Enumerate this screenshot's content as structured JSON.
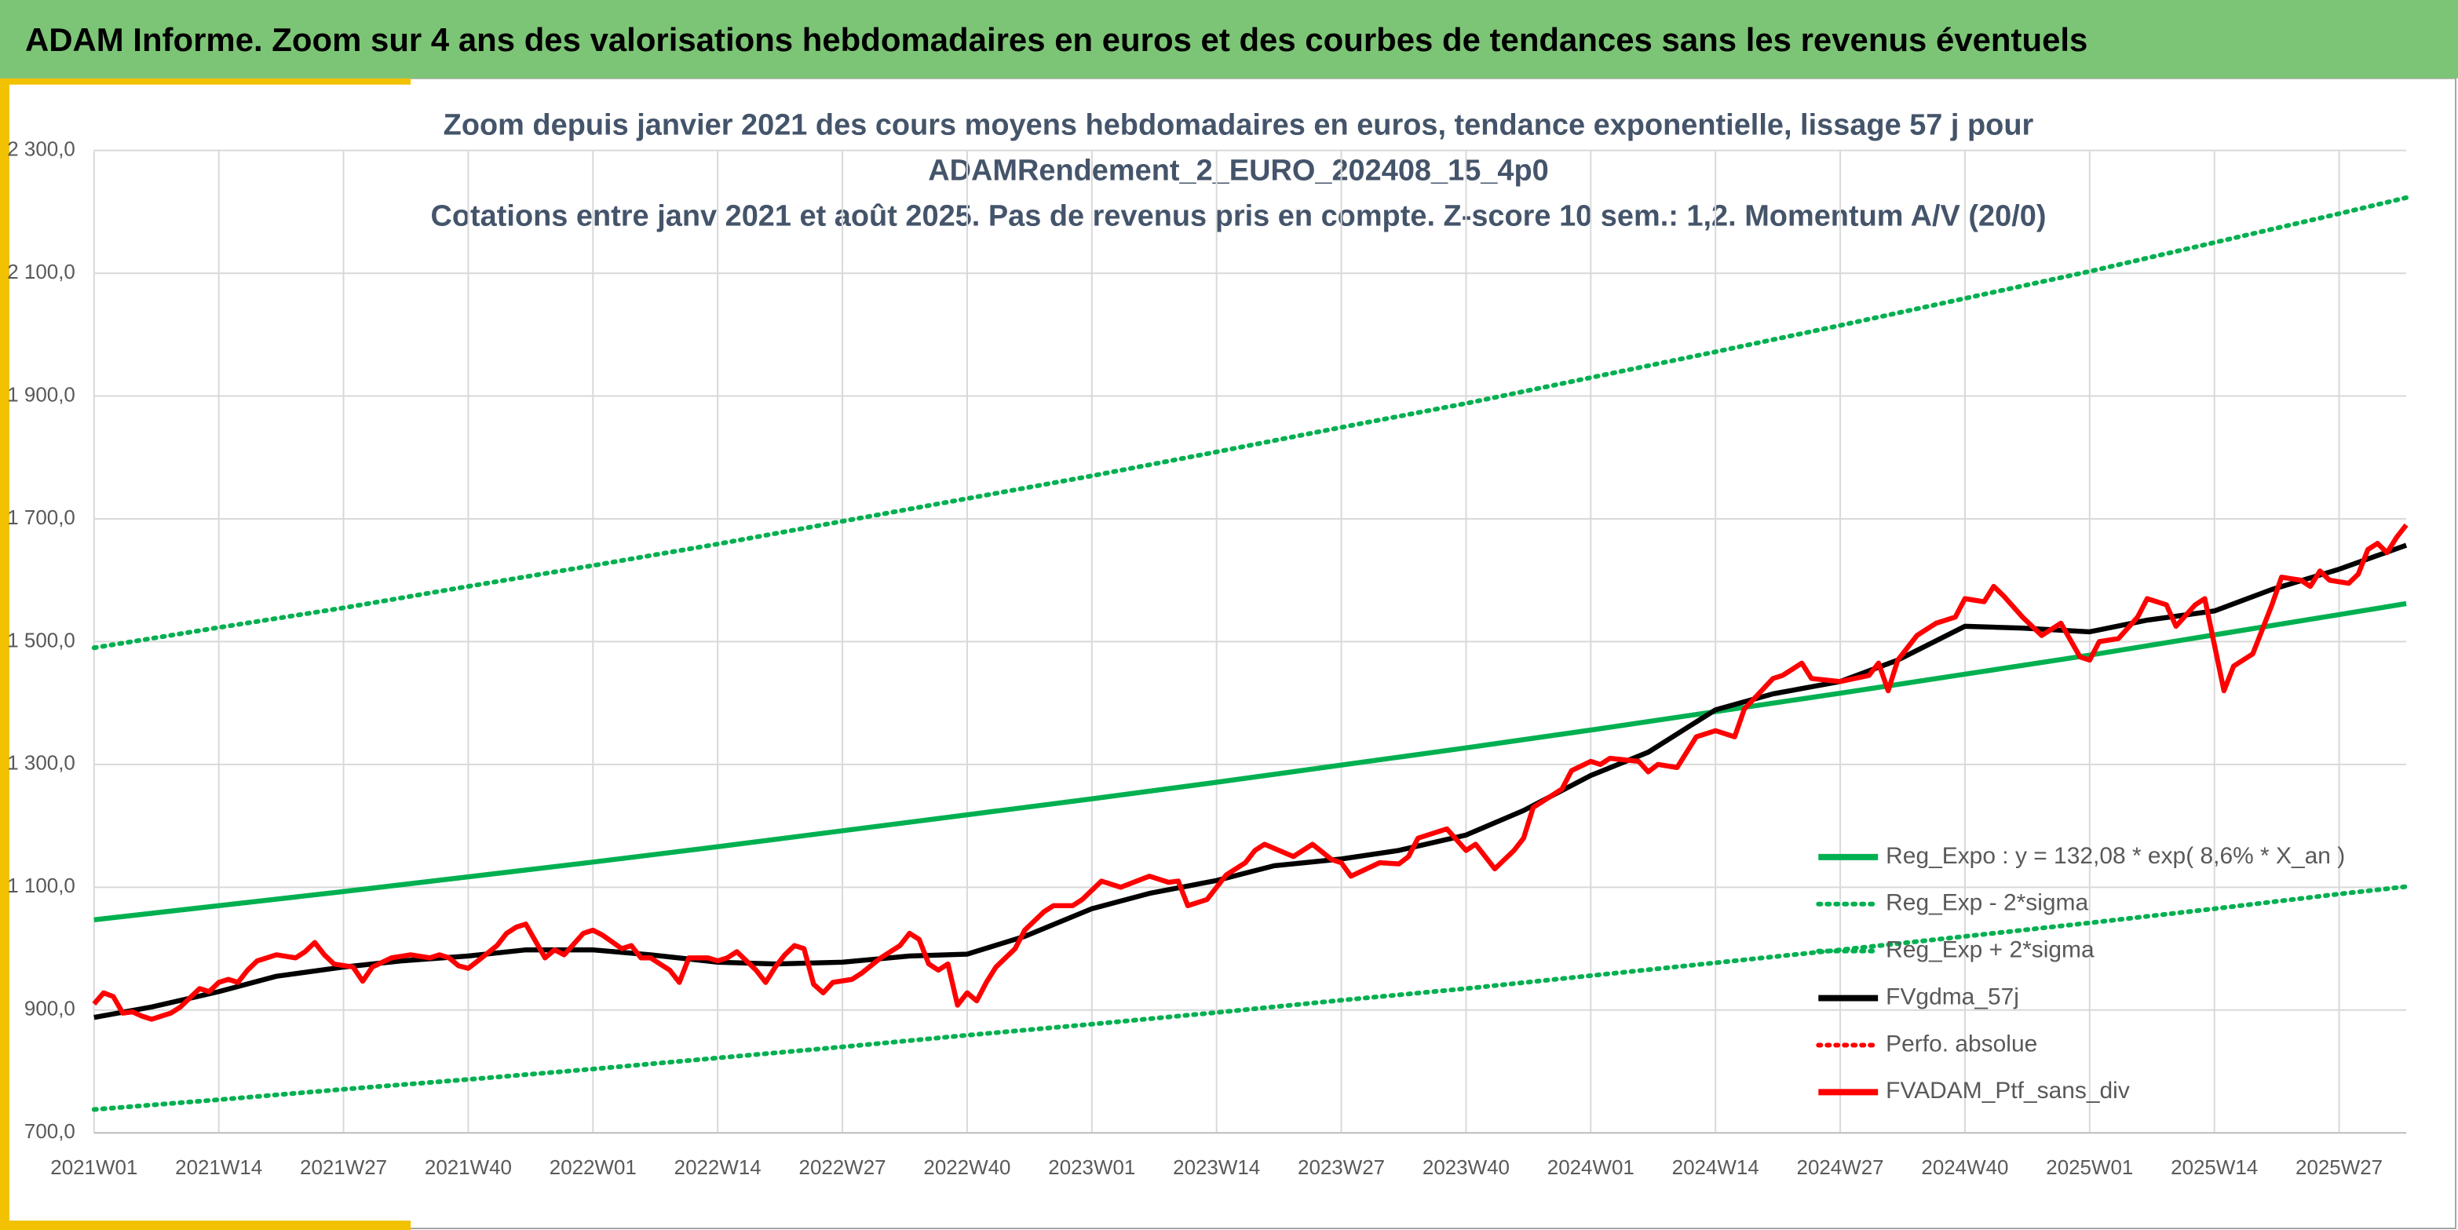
{
  "banner": {
    "title": "ADAM Informe. Zoom sur 4 ans des valorisations hebdomadaires en euros et des courbes de tendances sans les revenus éventuels"
  },
  "chart_data": {
    "type": "line",
    "title": [
      "Zoom depuis janvier 2021 des cours moyens hebdomadaires en euros, tendance exponentielle, lissage 57 j pour",
      "ADAMRendement_2_EURO_202408_15_4p0",
      "Cotations entre janv 2021 et août 2025. Pas de revenus pris en compte. Z-score 10 sem.: 1,2. Momentum A/V (20/0)"
    ],
    "xlim": [
      0,
      241
    ],
    "xticks": [
      {
        "value": 0,
        "label": "2021W01"
      },
      {
        "value": 13,
        "label": "2021W14"
      },
      {
        "value": 26,
        "label": "2021W27"
      },
      {
        "value": 39,
        "label": "2021W40"
      },
      {
        "value": 52,
        "label": "2022W01"
      },
      {
        "value": 65,
        "label": "2022W14"
      },
      {
        "value": 78,
        "label": "2022W27"
      },
      {
        "value": 91,
        "label": "2022W40"
      },
      {
        "value": 104,
        "label": "2023W01"
      },
      {
        "value": 117,
        "label": "2023W14"
      },
      {
        "value": 130,
        "label": "2023W27"
      },
      {
        "value": 143,
        "label": "2023W40"
      },
      {
        "value": 156,
        "label": "2024W01"
      },
      {
        "value": 169,
        "label": "2024W14"
      },
      {
        "value": 182,
        "label": "2024W27"
      },
      {
        "value": 195,
        "label": "2024W40"
      },
      {
        "value": 208,
        "label": "2025W01"
      },
      {
        "value": 221,
        "label": "2025W14"
      },
      {
        "value": 234,
        "label": "2025W27"
      }
    ],
    "ylim": [
      700,
      2300
    ],
    "yticks": [
      {
        "value": 700,
        "label": "700,0"
      },
      {
        "value": 900,
        "label": "900,0"
      },
      {
        "value": 1100,
        "label": "1 100,0"
      },
      {
        "value": 1300,
        "label": "1 300,0"
      },
      {
        "value": 1500,
        "label": "1 500,0"
      },
      {
        "value": 1700,
        "label": "1 700,0"
      },
      {
        "value": 1900,
        "label": "1 900,0"
      },
      {
        "value": 2100,
        "label": "2 100,0"
      },
      {
        "value": 2300,
        "label": "2 300,0"
      }
    ],
    "grid": true,
    "legend": "right",
    "series": [
      {
        "name": "Reg_Expo : y = 132,08 * exp( 8,6% *  X_an )",
        "color": "#00b050",
        "style": "solid",
        "x": [
          0,
          13,
          26,
          39,
          52,
          65,
          78,
          91,
          104,
          117,
          130,
          143,
          156,
          169,
          182,
          195,
          208,
          221,
          234,
          241
        ],
        "values": [
          1047,
          1070,
          1093,
          1117,
          1141,
          1166,
          1192,
          1218,
          1244,
          1271,
          1299,
          1327,
          1356,
          1386,
          1416,
          1447,
          1478,
          1511,
          1544,
          1562
        ]
      },
      {
        "name": "Reg_Exp - 2*sigma",
        "color": "#00b050",
        "style": "dotted",
        "x": [
          0,
          13,
          26,
          39,
          52,
          65,
          78,
          91,
          104,
          117,
          130,
          143,
          156,
          169,
          182,
          195,
          208,
          221,
          234,
          241
        ],
        "values": [
          738,
          754,
          771,
          787,
          804,
          822,
          840,
          859,
          877,
          896,
          916,
          935,
          956,
          977,
          998,
          1020,
          1042,
          1065,
          1089,
          1101
        ]
      },
      {
        "name": "Reg_Exp + 2*sigma",
        "color": "#00b050",
        "style": "dotted",
        "x": [
          0,
          13,
          26,
          39,
          52,
          65,
          78,
          91,
          104,
          117,
          130,
          143,
          156,
          169,
          182,
          195,
          208,
          221,
          234,
          241
        ],
        "values": [
          1490,
          1523,
          1555,
          1590,
          1624,
          1659,
          1696,
          1733,
          1770,
          1809,
          1849,
          1888,
          1930,
          1972,
          2015,
          2059,
          2103,
          2150,
          2197,
          2223
        ]
      },
      {
        "name": "FVgdma_57j",
        "color": "#000000",
        "style": "solid",
        "x": [
          0,
          6,
          13,
          19,
          26,
          32,
          39,
          45,
          52,
          58,
          65,
          71,
          78,
          85,
          91,
          97,
          104,
          110,
          117,
          123,
          130,
          136,
          143,
          149,
          156,
          162,
          169,
          175,
          182,
          188,
          195,
          201,
          208,
          214,
          221,
          227,
          234,
          241
        ],
        "values": [
          888,
          905,
          930,
          955,
          970,
          980,
          988,
          998,
          998,
          990,
          978,
          975,
          978,
          988,
          991,
          1020,
          1065,
          1090,
          1111,
          1135,
          1146,
          1160,
          1185,
          1225,
          1282,
          1320,
          1389,
          1415,
          1435,
          1470,
          1525,
          1522,
          1516,
          1535,
          1550,
          1585,
          1618,
          1657
        ]
      },
      {
        "name": "Perfo. absolue",
        "color": "#ff0000",
        "style": "dotted"
      },
      {
        "name": "FVADAM_Ptf_sans_div",
        "color": "#ff0000",
        "style": "solid",
        "x": [
          0,
          1,
          2,
          3,
          4,
          5,
          6,
          8,
          9,
          11,
          12,
          13,
          14,
          15,
          16,
          17,
          18,
          19,
          21,
          22,
          23,
          24,
          25,
          27,
          28,
          29,
          31,
          33,
          35,
          36,
          37,
          38,
          39,
          40,
          42,
          43,
          44,
          45,
          47,
          48,
          49,
          51,
          52,
          53,
          55,
          56,
          57,
          58,
          60,
          61,
          62,
          64,
          65,
          66,
          67,
          69,
          70,
          71,
          72,
          73,
          74,
          75,
          76,
          77,
          79,
          80,
          82,
          84,
          85,
          86,
          87,
          88,
          89,
          90,
          91,
          92,
          93,
          94,
          96,
          97,
          99,
          100,
          102,
          103,
          105,
          107,
          110,
          112,
          113,
          114,
          116,
          118,
          120,
          121,
          122,
          125,
          127,
          129,
          130,
          131,
          134,
          136,
          137,
          138,
          141,
          143,
          144,
          146,
          148,
          149,
          150,
          153,
          154,
          156,
          157,
          158,
          161,
          162,
          163,
          165,
          167,
          169,
          171,
          172,
          175,
          176,
          178,
          179,
          182,
          185,
          186,
          187,
          188,
          190,
          192,
          194,
          195,
          197,
          198,
          199,
          201,
          203,
          204,
          205,
          207,
          208,
          209,
          211,
          213,
          214,
          216,
          217,
          219,
          220,
          222,
          223,
          225,
          226,
          227,
          228,
          230,
          231,
          232,
          233,
          235,
          236,
          237,
          238,
          239,
          240,
          241
        ],
        "values": [
          910,
          928,
          922,
          895,
          897,
          890,
          885,
          895,
          905,
          935,
          930,
          945,
          950,
          945,
          965,
          980,
          985,
          990,
          985,
          995,
          1010,
          990,
          975,
          970,
          947,
          970,
          985,
          990,
          985,
          990,
          985,
          972,
          968,
          980,
          1005,
          1025,
          1035,
          1040,
          985,
          998,
          990,
          1025,
          1030,
          1022,
          1000,
          1005,
          985,
          985,
          965,
          945,
          985,
          985,
          980,
          985,
          995,
          965,
          945,
          970,
          990,
          1005,
          1000,
          942,
          928,
          945,
          950,
          960,
          985,
          1005,
          1025,
          1015,
          975,
          965,
          975,
          908,
          928,
          915,
          945,
          970,
          1000,
          1030,
          1060,
          1070,
          1070,
          1080,
          1110,
          1100,
          1118,
          1108,
          1110,
          1070,
          1080,
          1120,
          1140,
          1160,
          1170,
          1150,
          1170,
          1145,
          1140,
          1118,
          1140,
          1138,
          1150,
          1180,
          1195,
          1160,
          1170,
          1130,
          1160,
          1180,
          1230,
          1260,
          1290,
          1305,
          1300,
          1310,
          1305,
          1288,
          1300,
          1295,
          1345,
          1355,
          1345,
          1390,
          1440,
          1445,
          1465,
          1440,
          1435,
          1445,
          1465,
          1420,
          1470,
          1510,
          1530,
          1540,
          1570,
          1565,
          1590,
          1575,
          1540,
          1510,
          1520,
          1530,
          1475,
          1470,
          1500,
          1505,
          1540,
          1570,
          1560,
          1525,
          1560,
          1570,
          1420,
          1460,
          1480,
          1520,
          1560,
          1605,
          1600,
          1590,
          1615,
          1600,
          1595,
          1610,
          1650,
          1660,
          1645,
          1670,
          1690
        ]
      }
    ]
  }
}
